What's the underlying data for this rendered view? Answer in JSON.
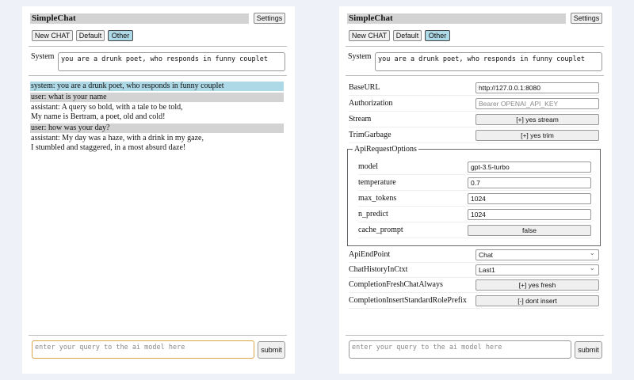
{
  "left": {
    "title": "SimpleChat",
    "settings_label": "Settings",
    "buttons": [
      "New CHAT",
      "Default",
      "Other"
    ],
    "system_label": "System",
    "system_value": "you are a drunk poet, who responds in funny couplet",
    "messages": [
      {
        "role": "system",
        "text": "system: you are a drunk poet, who responds in funny couplet"
      },
      {
        "role": "user",
        "text": "user: what is your name"
      },
      {
        "role": "assistant",
        "lines": [
          "assistant: A query so bold, with a tale to be told,",
          "My name is Bertram, a poet, old and cold!"
        ]
      },
      {
        "role": "user",
        "text": "user: how was your day?"
      },
      {
        "role": "assistant",
        "lines": [
          "assistant: My day was a haze, with a drink in my gaze,",
          "I stumbled and staggered, in a most absurd daze!"
        ]
      }
    ],
    "query_placeholder": "enter your query to the ai model here",
    "submit_label": "submit"
  },
  "right": {
    "title": "SimpleChat",
    "settings_label": "Settings",
    "buttons": [
      "New CHAT",
      "Default",
      "Other"
    ],
    "system_label": "System",
    "system_value": "you are a drunk poet, who responds in funny couplet",
    "settings": [
      {
        "label": "BaseURL",
        "value": "http://127.0.0.1:8080",
        "kind": "input"
      },
      {
        "label": "Authorization",
        "placeholder": "Bearer OPENAI_API_KEY",
        "kind": "input"
      },
      {
        "label": "Stream",
        "value": "[+] yes stream",
        "kind": "button"
      },
      {
        "label": "TrimGarbage",
        "value": "[+] yes trim",
        "kind": "button"
      }
    ],
    "api_options_legend": "ApiRequestOptions",
    "api_options": [
      {
        "label": "model",
        "value": "gpt-3.5-turbo",
        "kind": "input"
      },
      {
        "label": "temperature",
        "value": "0.7",
        "kind": "input"
      },
      {
        "label": "max_tokens",
        "value": "1024",
        "kind": "input"
      },
      {
        "label": "n_predict",
        "value": "1024",
        "kind": "input"
      },
      {
        "label": "cache_prompt",
        "value": "false",
        "kind": "button"
      }
    ],
    "settings2": [
      {
        "label": "ApiEndPoint",
        "value": "Chat",
        "kind": "select"
      },
      {
        "label": "ChatHistoryInCtxt",
        "value": "Last1",
        "kind": "select"
      },
      {
        "label": "CompletionFreshChatAlways",
        "value": "[+] yes fresh",
        "kind": "button"
      },
      {
        "label": "CompletionInsertStandardRolePrefix",
        "value": "[-] dont insert",
        "kind": "button"
      }
    ],
    "query_placeholder": "enter your query to the ai model here",
    "submit_label": "submit"
  }
}
